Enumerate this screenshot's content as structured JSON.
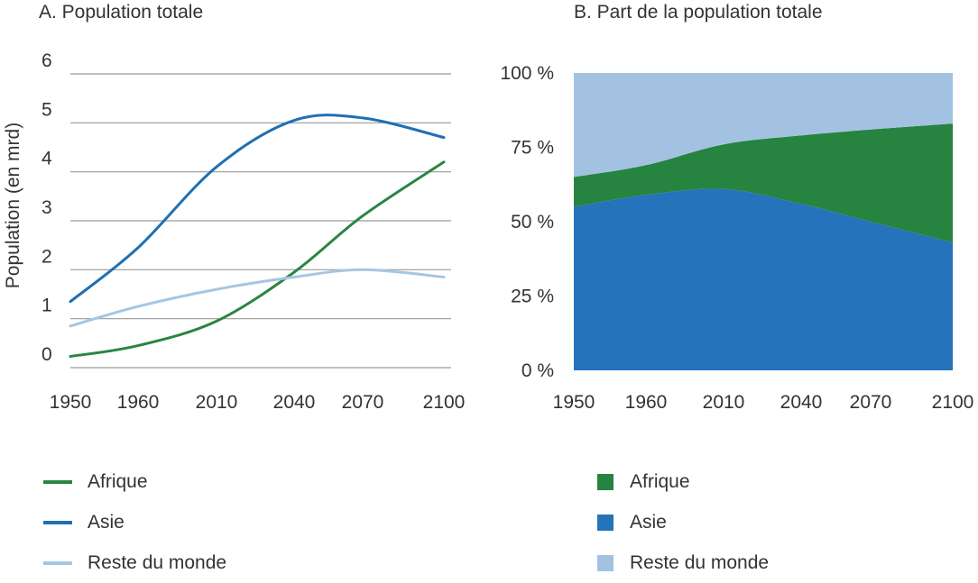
{
  "chart_data": [
    {
      "type": "line",
      "title": "A. Population totale",
      "ylabel": "Population (en mrd)",
      "xlabel": "",
      "categories": [
        "1950",
        "1960",
        "2010",
        "2040",
        "2070",
        "2100"
      ],
      "ylim": [
        0,
        6
      ],
      "yticks": [
        "0",
        "1",
        "2",
        "3",
        "4",
        "5",
        "6"
      ],
      "grid": true,
      "series": [
        {
          "name": "Afrique",
          "color": "#2a8542",
          "values": [
            0.23,
            0.45,
            0.95,
            1.95,
            3.1,
            4.2
          ]
        },
        {
          "name": "Asie",
          "color": "#1f6fb2",
          "values": [
            1.35,
            2.45,
            4.1,
            5.05,
            5.1,
            4.7
          ]
        },
        {
          "name": "Reste du monde",
          "color": "#a5c6e3",
          "values": [
            0.85,
            1.25,
            1.6,
            1.85,
            2.0,
            1.85
          ]
        }
      ],
      "legend_position": "bottom"
    },
    {
      "type": "area",
      "title": "B. Part de la population totale",
      "xlabel": "",
      "ylabel": "",
      "categories": [
        "1950",
        "1960",
        "2010",
        "2040",
        "2070",
        "2100"
      ],
      "ylim": [
        0,
        100
      ],
      "yticks": [
        "0 %",
        "25 %",
        "50 %",
        "75 %",
        "100 %"
      ],
      "stacked": true,
      "grid": false,
      "series": [
        {
          "name": "Asie",
          "color": "#2573bb",
          "values": [
            55,
            59,
            61,
            56,
            50,
            43
          ]
        },
        {
          "name": "Afrique",
          "color": "#268340",
          "values": [
            10,
            10,
            15,
            23,
            31,
            40
          ]
        },
        {
          "name": "Reste du monde",
          "color": "#a3c2e2",
          "values": [
            35,
            31,
            24,
            21,
            19,
            17
          ]
        }
      ],
      "legend_position": "bottom"
    }
  ],
  "legend_a": [
    {
      "label": "Afrique",
      "color": "#2a8542"
    },
    {
      "label": "Asie",
      "color": "#1f6fb2"
    },
    {
      "label": "Reste du monde",
      "color": "#a5c6e3"
    }
  ],
  "legend_b": [
    {
      "label": "Afrique",
      "color": "#268340"
    },
    {
      "label": "Asie",
      "color": "#2573bb"
    },
    {
      "label": "Reste du monde",
      "color": "#a3c2e2"
    }
  ]
}
